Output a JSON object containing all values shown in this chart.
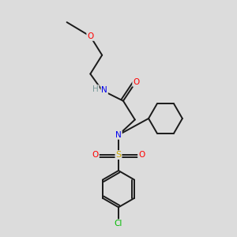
{
  "background_color": "#dcdcdc",
  "bond_color": "#1a1a1a",
  "atom_colors": {
    "O": "#ff0000",
    "N": "#0000ee",
    "S": "#ccaa00",
    "Cl": "#00bb00",
    "H": "#7a9a9a",
    "C": "#1a1a1a"
  },
  "figsize": [
    3.0,
    3.0
  ],
  "dpi": 100,
  "lw": 1.4,
  "fontsize": 7.5
}
